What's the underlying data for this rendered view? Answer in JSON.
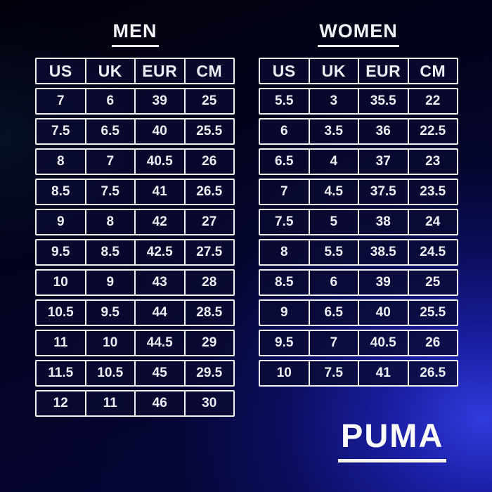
{
  "chart_data": [
    {
      "type": "table",
      "title": "MEN",
      "columns": [
        "US",
        "UK",
        "EUR",
        "CM"
      ],
      "rows": [
        [
          "7",
          "6",
          "39",
          "25"
        ],
        [
          "7.5",
          "6.5",
          "40",
          "25.5"
        ],
        [
          "8",
          "7",
          "40.5",
          "26"
        ],
        [
          "8.5",
          "7.5",
          "41",
          "26.5"
        ],
        [
          "9",
          "8",
          "42",
          "27"
        ],
        [
          "9.5",
          "8.5",
          "42.5",
          "27.5"
        ],
        [
          "10",
          "9",
          "43",
          "28"
        ],
        [
          "10.5",
          "9.5",
          "44",
          "28.5"
        ],
        [
          "11",
          "10",
          "44.5",
          "29"
        ],
        [
          "11.5",
          "10.5",
          "45",
          "29.5"
        ],
        [
          "12",
          "11",
          "46",
          "30"
        ]
      ]
    },
    {
      "type": "table",
      "title": "WOMEN",
      "columns": [
        "US",
        "UK",
        "EUR",
        "CM"
      ],
      "rows": [
        [
          "5.5",
          "3",
          "35.5",
          "22"
        ],
        [
          "6",
          "3.5",
          "36",
          "22.5"
        ],
        [
          "6.5",
          "4",
          "37",
          "23"
        ],
        [
          "7",
          "4.5",
          "37.5",
          "23.5"
        ],
        [
          "7.5",
          "5",
          "38",
          "24"
        ],
        [
          "8",
          "5.5",
          "38.5",
          "24.5"
        ],
        [
          "8.5",
          "6",
          "39",
          "25"
        ],
        [
          "9",
          "6.5",
          "40",
          "25.5"
        ],
        [
          "9.5",
          "7",
          "40.5",
          "26"
        ],
        [
          "10",
          "7.5",
          "41",
          "26.5"
        ]
      ]
    }
  ],
  "brand": {
    "name": "PUMA"
  },
  "colors": {
    "background_dark": "#01010c",
    "background_bright_blue": "#2a2fd0",
    "cell_fill": "#0c0c3e",
    "cell_border": "#f2f2f2",
    "text": "#edeff6"
  }
}
